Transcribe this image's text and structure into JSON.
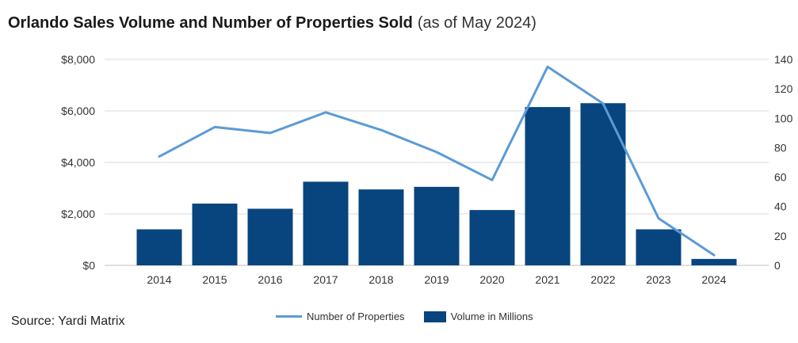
{
  "header": {
    "title": "Orlando Sales Volume and Number of Properties Sold",
    "subtitle": "(as of May 2024)"
  },
  "footer": {
    "source": "Source: Yardi Matrix"
  },
  "colors": {
    "bar": "#08457e",
    "line": "#5b9bd5",
    "grid": "#d9d9d9",
    "text": "#333333"
  },
  "chart_data": {
    "type": "bar",
    "categories": [
      "2014",
      "2015",
      "2016",
      "2017",
      "2018",
      "2019",
      "2020",
      "2021",
      "2022",
      "2023",
      "2024"
    ],
    "series": [
      {
        "name": "Volume in Millions",
        "type": "bar",
        "axis": "left",
        "values": [
          1400,
          2400,
          2200,
          3250,
          2950,
          3050,
          2150,
          6150,
          6300,
          1400,
          250
        ]
      },
      {
        "name": "Number of Properties",
        "type": "line",
        "axis": "right",
        "values": [
          74,
          94,
          90,
          104,
          92,
          77,
          58,
          135,
          110,
          32,
          7
        ]
      }
    ],
    "y_left": {
      "lim": [
        0,
        8000
      ],
      "ticks": [
        0,
        2000,
        4000,
        6000,
        8000
      ],
      "tick_labels": [
        "$0",
        "$2,000",
        "$4,000",
        "$6,000",
        "$8,000"
      ]
    },
    "y_right": {
      "lim": [
        0,
        140
      ],
      "ticks": [
        0,
        20,
        40,
        60,
        80,
        100,
        120,
        140
      ],
      "tick_labels": [
        "0",
        "20",
        "40",
        "60",
        "80",
        "100",
        "120",
        "140"
      ]
    },
    "grid": "horizontal",
    "legend": "bottom-center"
  }
}
